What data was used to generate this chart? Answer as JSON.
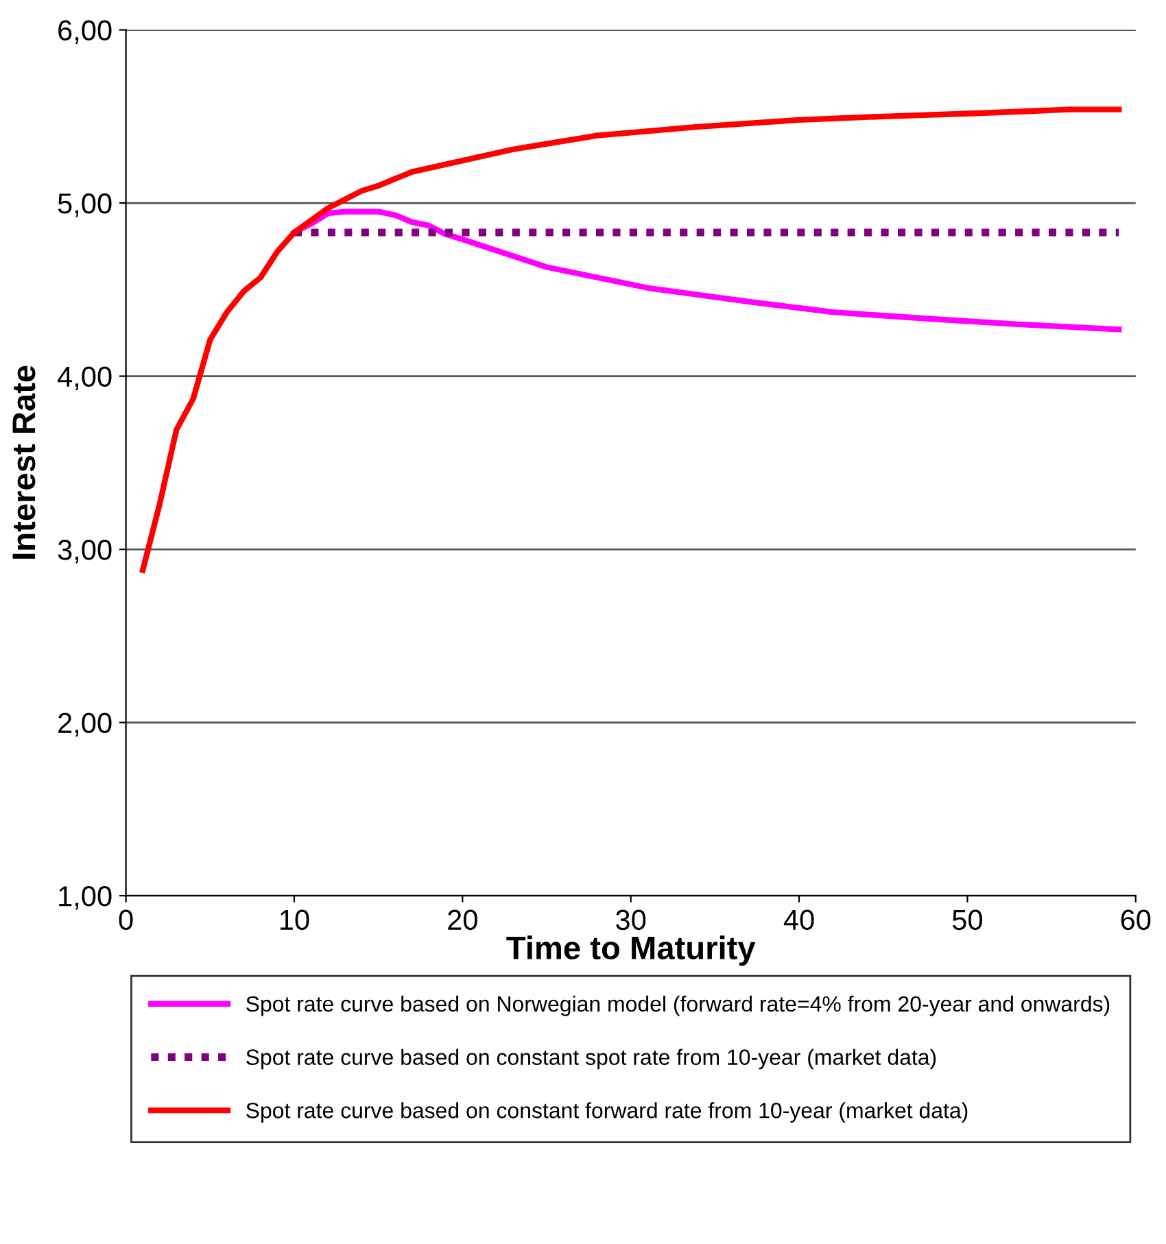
{
  "chart_data": {
    "type": "line",
    "xlabel": "Time to Maturity",
    "ylabel": "Interest Rate",
    "xlim": [
      0,
      60
    ],
    "xticks": [
      0,
      10,
      20,
      30,
      40,
      50,
      60
    ],
    "ylim": [
      1,
      6
    ],
    "yticks": [
      {
        "value": 1,
        "label": "1,00"
      },
      {
        "value": 2,
        "label": "2,00"
      },
      {
        "value": 3,
        "label": "3,00"
      },
      {
        "value": 4,
        "label": "4,00"
      },
      {
        "value": 5,
        "label": "5,00"
      },
      {
        "value": 6,
        "label": "6,00"
      }
    ],
    "grid": "y",
    "legend": "bottom",
    "marker": "none",
    "series": [
      {
        "name": "Spot rate curve based on Norwegian model (forward rate=4% from 20-year and onwards)",
        "color": "#ff00ff",
        "line_style": "solid",
        "x": [
          10,
          11,
          12,
          13,
          14,
          15,
          16,
          17,
          18,
          19,
          20,
          25,
          31,
          37,
          42,
          48,
          53,
          59
        ],
        "values": [
          4.83,
          4.88,
          4.94,
          4.95,
          4.95,
          4.95,
          4.93,
          4.89,
          4.87,
          4.82,
          4.79,
          4.63,
          4.51,
          4.43,
          4.37,
          4.33,
          4.3,
          4.27
        ]
      },
      {
        "name": "Spot rate curve based on constant spot rate from 10-year (market data)",
        "color": "#800080",
        "line_style": "dotted",
        "x": [
          10,
          59
        ],
        "values": [
          4.83,
          4.83
        ]
      },
      {
        "name": "Spot rate curve based on constant forward rate from 10-year (market data)",
        "color": "#ff0000",
        "line_style": "solid",
        "x": [
          1,
          2,
          3,
          4,
          5,
          6,
          7,
          8,
          9,
          10,
          11,
          12,
          13,
          14,
          15,
          16,
          17,
          23,
          28,
          34,
          40,
          45,
          51,
          56,
          59
        ],
        "values": [
          2.88,
          3.26,
          3.69,
          3.87,
          4.21,
          4.37,
          4.49,
          4.57,
          4.72,
          4.83,
          4.9,
          4.97,
          5.02,
          5.07,
          5.1,
          5.14,
          5.18,
          5.31,
          5.39,
          5.44,
          5.48,
          5.5,
          5.52,
          5.54,
          5.54
        ]
      }
    ]
  }
}
